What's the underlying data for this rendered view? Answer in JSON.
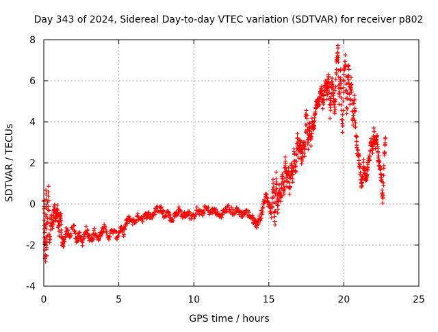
{
  "chart_data": {
    "type": "scatter",
    "title": "Day 343 of 2024, Sidereal Day-to-day VTEC variation (SDTVAR) for receiver p802",
    "xlabel": "GPS time / hours",
    "ylabel": "SDTVAR / TECUs",
    "xlim": [
      0,
      25
    ],
    "ylim": [
      -4,
      8
    ],
    "xticks": [
      0,
      5,
      10,
      15,
      20,
      25
    ],
    "yticks": [
      -4,
      -2,
      0,
      2,
      4,
      6,
      8
    ],
    "xtick_labels": [
      "0",
      "5",
      "10",
      "15",
      "20",
      "25"
    ],
    "ytick_labels": [
      "-4",
      "-2",
      "0",
      "2",
      "4",
      "6",
      "8"
    ],
    "grid": true,
    "marker": "+",
    "series": [
      {
        "name": "SDTVAR",
        "color": "#ff0000",
        "trace": [
          [
            0.0,
            0.2
          ],
          [
            0.05,
            -1.5
          ],
          [
            0.1,
            -2.8
          ],
          [
            0.15,
            0.7
          ],
          [
            0.2,
            -2.6
          ],
          [
            0.3,
            0.8
          ],
          [
            0.4,
            -2.0
          ],
          [
            0.5,
            -0.6
          ],
          [
            0.6,
            -1.2
          ],
          [
            0.7,
            0.0
          ],
          [
            0.8,
            -0.9
          ],
          [
            0.9,
            -0.1
          ],
          [
            1.0,
            -1.4
          ],
          [
            1.1,
            -0.4
          ],
          [
            1.2,
            -1.7
          ],
          [
            1.3,
            -2.0
          ],
          [
            1.5,
            -1.3
          ],
          [
            1.7,
            -1.6
          ],
          [
            2.0,
            -1.1
          ],
          [
            2.2,
            -1.8
          ],
          [
            2.4,
            -1.4
          ],
          [
            2.6,
            -1.9
          ],
          [
            2.8,
            -1.2
          ],
          [
            3.0,
            -1.6
          ],
          [
            3.2,
            -1.8
          ],
          [
            3.4,
            -1.3
          ],
          [
            3.6,
            -1.7
          ],
          [
            3.8,
            -1.4
          ],
          [
            4.0,
            -1.1
          ],
          [
            4.3,
            -1.6
          ],
          [
            4.6,
            -1.3
          ],
          [
            4.9,
            -1.6
          ],
          [
            5.1,
            -1.2
          ],
          [
            5.3,
            -1.4
          ],
          [
            5.5,
            -0.9
          ],
          [
            5.7,
            -0.7
          ],
          [
            6.0,
            -0.9
          ],
          [
            6.3,
            -0.6
          ],
          [
            6.6,
            -0.7
          ],
          [
            6.9,
            -0.5
          ],
          [
            7.2,
            -0.6
          ],
          [
            7.5,
            -0.3
          ],
          [
            7.8,
            -0.2
          ],
          [
            8.0,
            -0.5
          ],
          [
            8.3,
            -0.4
          ],
          [
            8.5,
            -0.8
          ],
          [
            8.8,
            -0.5
          ],
          [
            9.0,
            -0.3
          ],
          [
            9.3,
            -0.6
          ],
          [
            9.6,
            -0.4
          ],
          [
            9.9,
            -0.7
          ],
          [
            10.2,
            -0.3
          ],
          [
            10.5,
            -0.5
          ],
          [
            10.8,
            -0.2
          ],
          [
            11.1,
            -0.4
          ],
          [
            11.4,
            -0.3
          ],
          [
            11.7,
            -0.6
          ],
          [
            12.0,
            -0.4
          ],
          [
            12.3,
            -0.2
          ],
          [
            12.6,
            -0.4
          ],
          [
            12.9,
            -0.3
          ],
          [
            13.2,
            -0.5
          ],
          [
            13.5,
            -0.4
          ],
          [
            13.8,
            -0.6
          ],
          [
            14.0,
            -0.8
          ],
          [
            14.2,
            -1.0
          ],
          [
            14.4,
            -0.7
          ],
          [
            14.6,
            -0.2
          ],
          [
            14.8,
            0.5
          ],
          [
            15.0,
            0.0
          ],
          [
            15.2,
            -0.5
          ],
          [
            15.3,
            1.2
          ],
          [
            15.4,
            -1.0
          ],
          [
            15.5,
            1.4
          ],
          [
            15.6,
            -0.3
          ],
          [
            15.7,
            0.8
          ],
          [
            15.8,
            0.3
          ],
          [
            15.9,
            1.5
          ],
          [
            16.0,
            0.5
          ],
          [
            16.1,
            2.2
          ],
          [
            16.2,
            1.0
          ],
          [
            16.3,
            1.7
          ],
          [
            16.4,
            0.6
          ],
          [
            16.5,
            2.1
          ],
          [
            16.6,
            1.2
          ],
          [
            16.7,
            2.6
          ],
          [
            16.8,
            1.5
          ],
          [
            16.9,
            3.4
          ],
          [
            17.0,
            2.4
          ],
          [
            17.1,
            3.1
          ],
          [
            17.2,
            2.0
          ],
          [
            17.3,
            3.0
          ],
          [
            17.4,
            2.5
          ],
          [
            17.5,
            4.6
          ],
          [
            17.6,
            2.8
          ],
          [
            17.7,
            3.9
          ],
          [
            17.8,
            3.0
          ],
          [
            17.9,
            4.0
          ],
          [
            18.0,
            3.6
          ],
          [
            18.1,
            4.5
          ],
          [
            18.2,
            5.0
          ],
          [
            18.3,
            4.7
          ],
          [
            18.4,
            5.3
          ],
          [
            18.5,
            5.6
          ],
          [
            18.6,
            4.8
          ],
          [
            18.7,
            5.5
          ],
          [
            18.8,
            6.0
          ],
          [
            18.9,
            5.2
          ],
          [
            19.0,
            6.3
          ],
          [
            19.1,
            4.3
          ],
          [
            19.2,
            6.0
          ],
          [
            19.3,
            5.5
          ],
          [
            19.4,
            4.5
          ],
          [
            19.5,
            6.7
          ],
          [
            19.6,
            7.6
          ],
          [
            19.7,
            5.0
          ],
          [
            19.8,
            6.5
          ],
          [
            19.9,
            3.4
          ],
          [
            20.0,
            6.2
          ],
          [
            20.1,
            7.1
          ],
          [
            20.2,
            4.5
          ],
          [
            20.3,
            6.8
          ],
          [
            20.4,
            5.0
          ],
          [
            20.5,
            6.0
          ],
          [
            20.6,
            3.9
          ],
          [
            20.7,
            5.2
          ],
          [
            20.8,
            3.5
          ],
          [
            20.9,
            2.6
          ],
          [
            21.0,
            2.2
          ],
          [
            21.1,
            1.5
          ],
          [
            21.2,
            0.8
          ],
          [
            21.3,
            2.0
          ],
          [
            21.4,
            1.4
          ],
          [
            21.5,
            1.1
          ],
          [
            21.6,
            1.8
          ],
          [
            21.7,
            2.3
          ],
          [
            21.8,
            3.1
          ],
          [
            21.9,
            2.6
          ],
          [
            22.0,
            3.6
          ],
          [
            22.1,
            2.8
          ],
          [
            22.2,
            3.3
          ],
          [
            22.3,
            2.2
          ],
          [
            22.4,
            1.8
          ],
          [
            22.5,
            1.2
          ],
          [
            22.6,
            0.0
          ],
          [
            22.7,
            2.5
          ],
          [
            22.8,
            3.2
          ]
        ]
      }
    ]
  }
}
